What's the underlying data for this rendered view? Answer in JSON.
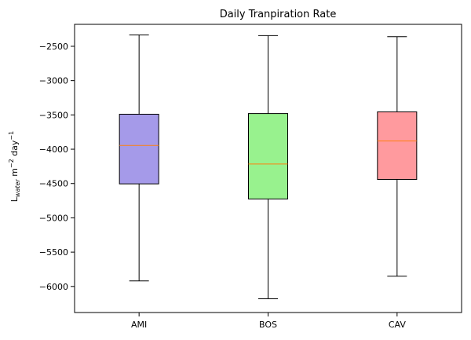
{
  "chart_data": {
    "type": "box",
    "title": "Daily Tranpiration Rate",
    "ylabel": {
      "base": "L",
      "subscript": "water",
      "unit1": " m",
      "exp1": "−2",
      "unit2": " day",
      "exp2": "−1"
    },
    "xlabel": "",
    "ylim": [
      -6380,
      -2180
    ],
    "yticks": [
      -2500,
      -3000,
      -3500,
      -4000,
      -4500,
      -5000,
      -5500,
      -6000
    ],
    "ytick_labels": [
      "−2500",
      "−3000",
      "−3500",
      "−4000",
      "−4500",
      "−5000",
      "−5500",
      "−6000"
    ],
    "grid": false,
    "median_color": "#ff7f0e",
    "categories": [
      "AMI",
      "BOS",
      "CAV"
    ],
    "boxes": [
      {
        "category": "AMI",
        "whisker_low": -5920,
        "q1": -4505,
        "median": -3945,
        "q3": -3490,
        "whisker_high": -2335,
        "color": "#a59ae9"
      },
      {
        "category": "BOS",
        "whisker_low": -6180,
        "q1": -4725,
        "median": -4215,
        "q3": -3480,
        "whisker_high": -2345,
        "color": "#98f28e"
      },
      {
        "category": "CAV",
        "whisker_low": -5850,
        "q1": -4440,
        "median": -3880,
        "q3": -3455,
        "whisker_high": -2360,
        "color": "#ff9a9e"
      }
    ]
  }
}
